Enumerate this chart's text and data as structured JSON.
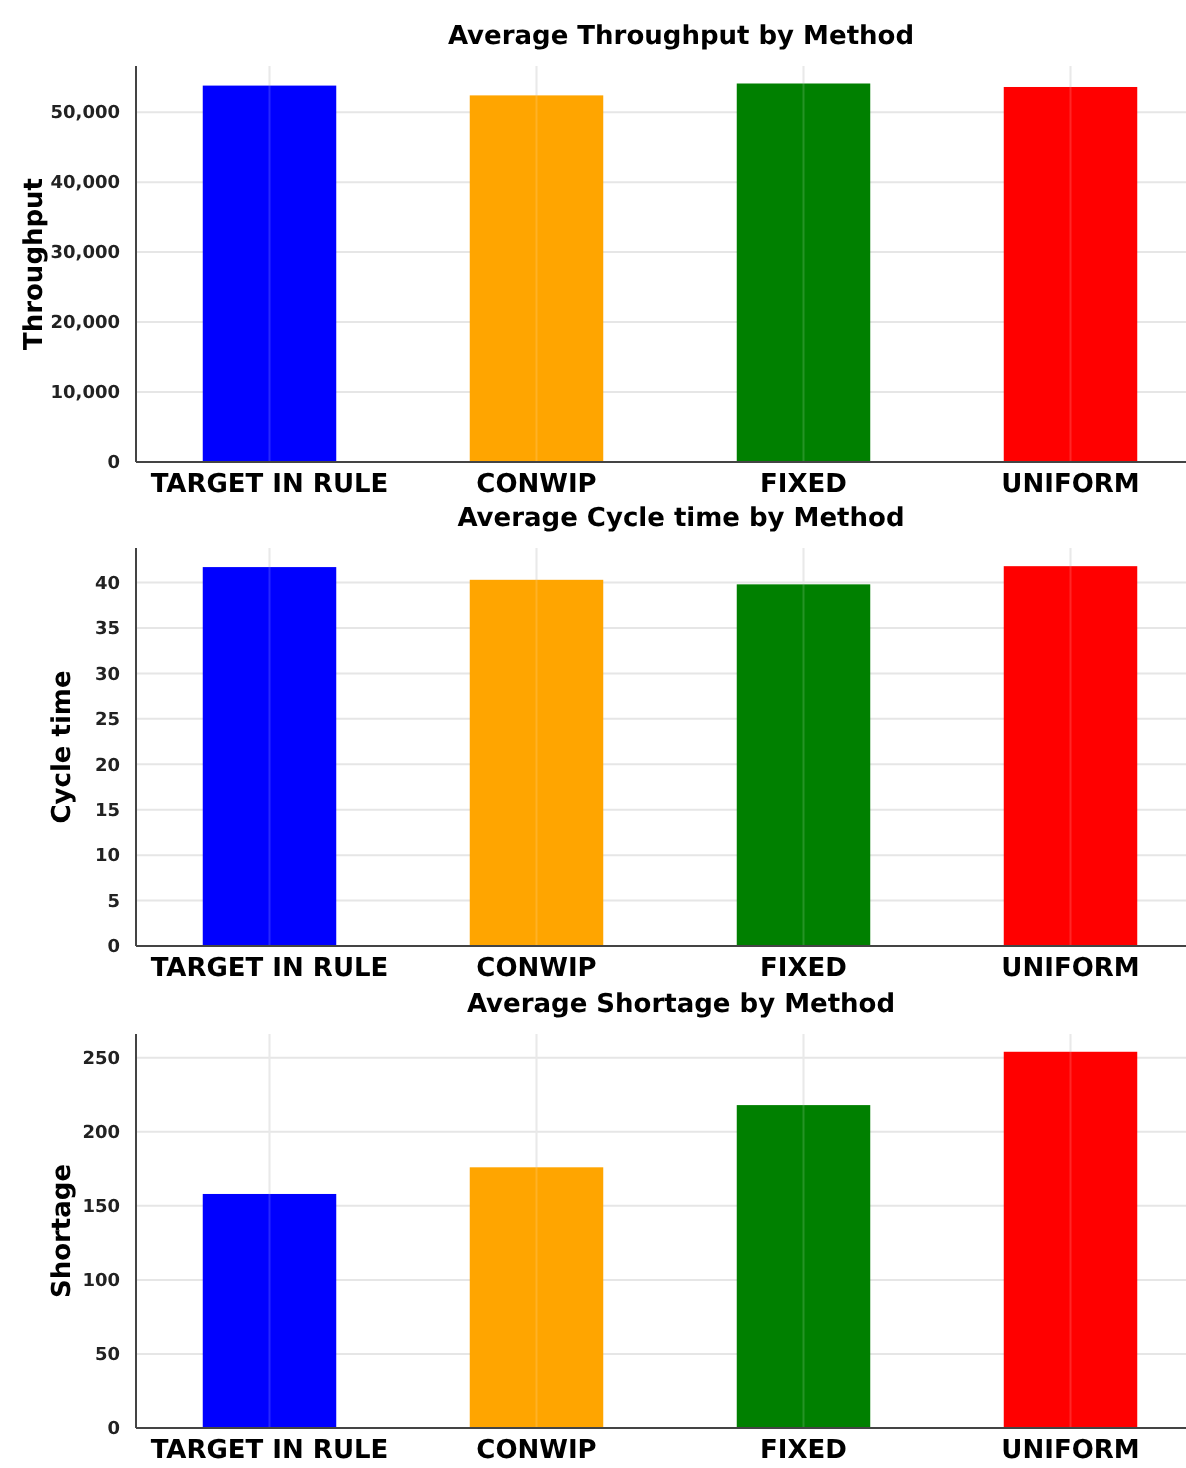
{
  "chart_data": [
    {
      "type": "bar",
      "title": "Average Throughput by Method",
      "ylabel": "Throughput",
      "categories": [
        "TARGET IN RULE",
        "CONWIP",
        "FIXED",
        "UNIFORM"
      ],
      "values": [
        53800,
        52400,
        54100,
        53600
      ],
      "colors": [
        "#0000ff",
        "#ffa500",
        "#008000",
        "#ff0000"
      ],
      "ylim": [
        0,
        56600
      ],
      "yticks": [
        0,
        {
          "value": 10000,
          "label": "10,000"
        },
        {
          "value": 20000,
          "label": "20,000"
        },
        {
          "value": 30000,
          "label": "30,000"
        },
        {
          "value": 40000,
          "label": "40,000"
        },
        {
          "value": 50000,
          "label": "50,000"
        }
      ],
      "grid": true
    },
    {
      "type": "bar",
      "title": "Average Cycle time by Method",
      "ylabel": "Cycle time",
      "categories": [
        "TARGET IN RULE",
        "CONWIP",
        "FIXED",
        "UNIFORM"
      ],
      "values": [
        41.7,
        40.3,
        39.8,
        41.8
      ],
      "colors": [
        "#0000ff",
        "#ffa500",
        "#008000",
        "#ff0000"
      ],
      "ylim": [
        0,
        43.8
      ],
      "yticks": [
        0,
        5,
        10,
        15,
        20,
        25,
        30,
        35,
        40
      ],
      "grid": true
    },
    {
      "type": "bar",
      "title": "Average Shortage by Method",
      "ylabel": "Shortage",
      "categories": [
        "TARGET IN RULE",
        "CONWIP",
        "FIXED",
        "UNIFORM"
      ],
      "values": [
        158,
        176,
        218,
        254
      ],
      "colors": [
        "#0000ff",
        "#ffa500",
        "#008000",
        "#ff0000"
      ],
      "ylim": [
        0,
        266
      ],
      "yticks": [
        0,
        50,
        100,
        150,
        200,
        250
      ],
      "grid": true
    }
  ]
}
